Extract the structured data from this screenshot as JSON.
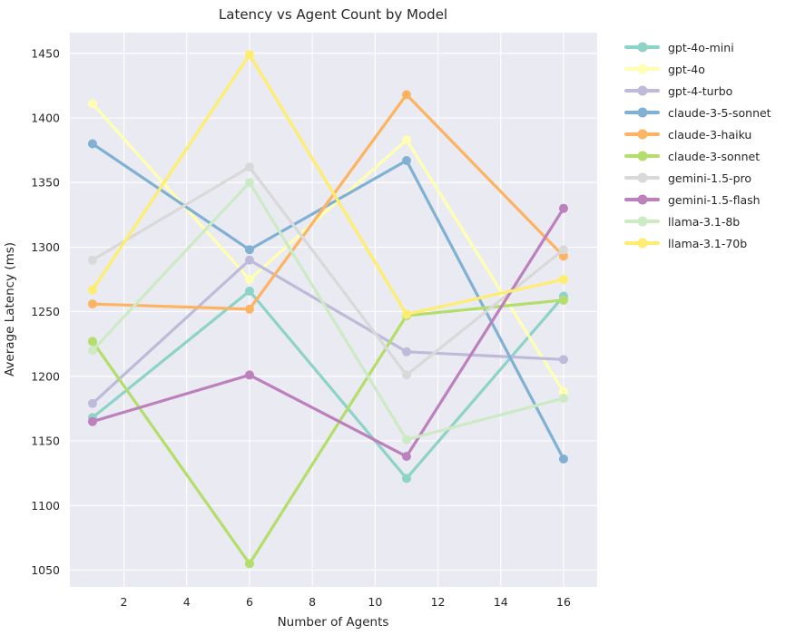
{
  "title": "Latency vs Agent Count by Model",
  "chart_data": {
    "type": "line",
    "title": "Latency vs Agent Count by Model",
    "xlabel": "Number of Agents",
    "ylabel": "Average Latency (ms)",
    "x": [
      1,
      6,
      11,
      16
    ],
    "series": [
      {
        "name": "gpt-4o-mini",
        "color": "#8dd3c7",
        "values": [
          1168,
          1266,
          1121,
          1262
        ]
      },
      {
        "name": "gpt-4o",
        "color": "#ffffb3",
        "values": [
          1411,
          1275,
          1383,
          1188
        ]
      },
      {
        "name": "gpt-4-turbo",
        "color": "#bebada",
        "values": [
          1179,
          1290,
          1219,
          1213
        ]
      },
      {
        "name": "claude-3-5-sonnet",
        "color": "#80b1d3",
        "values": [
          1380,
          1298,
          1367,
          1136
        ]
      },
      {
        "name": "claude-3-haiku",
        "color": "#fdb462",
        "values": [
          1256,
          1252,
          1418,
          1293
        ]
      },
      {
        "name": "claude-3-sonnet",
        "color": "#b3de69",
        "values": [
          1227,
          1055,
          1247,
          1259
        ]
      },
      {
        "name": "gemini-1.5-pro",
        "color": "#d9d9d9",
        "values": [
          1290,
          1362,
          1201,
          1298
        ]
      },
      {
        "name": "gemini-1.5-flash",
        "color": "#bc80bd",
        "values": [
          1165,
          1201,
          1138,
          1330
        ]
      },
      {
        "name": "llama-3.1-8b",
        "color": "#ccebc5",
        "values": [
          1220,
          1350,
          1151,
          1183
        ]
      },
      {
        "name": "llama-3.1-70b",
        "color": "#ffed6f",
        "values": [
          1267,
          1449,
          1248,
          1275
        ]
      }
    ],
    "xticks": [
      2,
      4,
      6,
      8,
      10,
      12,
      14,
      16
    ],
    "yticks": [
      1050,
      1100,
      1150,
      1200,
      1250,
      1300,
      1350,
      1400,
      1450
    ],
    "xlim": [
      0.28,
      17.07
    ],
    "ylim": [
      1037,
      1466
    ],
    "grid": true,
    "legend_position": "right outside",
    "plot_bg": "#eaeaf2",
    "grid_color": "#ffffff",
    "text_color": "#262626"
  }
}
